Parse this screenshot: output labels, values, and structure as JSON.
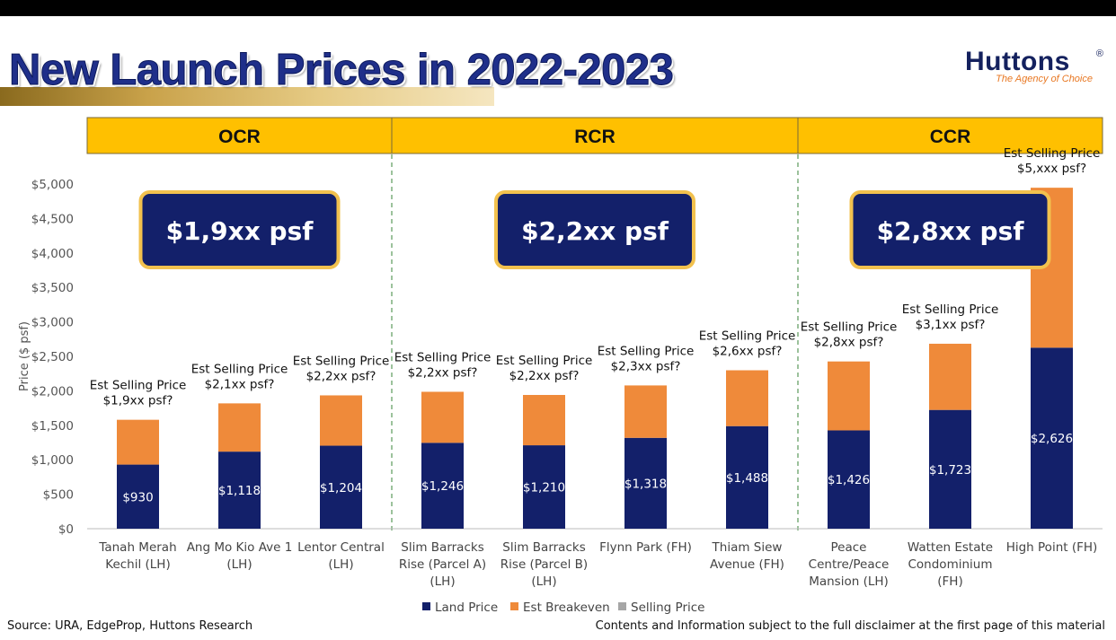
{
  "header": {
    "title": "New Launch Prices in 2022-2023",
    "brand_name": "Huttons",
    "brand_reg": "®",
    "brand_tagline": "The Agency of Choice"
  },
  "footer": {
    "source": "Source: URA, EdgeProp, Huttons Research",
    "disclaimer": "Contents and Information subject to the full disclaimer at the first page of this material"
  },
  "colors": {
    "land": "#13206a",
    "breakeven": "#ef8a3a",
    "selling": "#a6a6a6",
    "segment_fill": "#ffc000",
    "badge_fill": "#13206a",
    "badge_border": "#f2c14e"
  },
  "chart_data": {
    "type": "bar",
    "stacked": true,
    "ylabel": "Price ($ psf)",
    "ylim": [
      0,
      5000
    ],
    "yticks": [
      0,
      500,
      1000,
      1500,
      2000,
      2500,
      3000,
      3500,
      4000,
      4500,
      5000
    ],
    "ytick_labels": [
      "$0",
      "$500",
      "$1,000",
      "$1,500",
      "$2,000",
      "$2,500",
      "$3,000",
      "$3,500",
      "$4,000",
      "$4,500",
      "$5,000"
    ],
    "grid": false,
    "legend_position": "bottom",
    "segments": [
      {
        "name": "OCR",
        "start": 0,
        "end": 2,
        "avg_label": "$1,9xx psf"
      },
      {
        "name": "RCR",
        "start": 3,
        "end": 6,
        "avg_label": "$2,2xx psf"
      },
      {
        "name": "CCR",
        "start": 7,
        "end": 9,
        "avg_label": "$2,8xx psf"
      }
    ],
    "categories": [
      [
        "Tanah Merah",
        "Kechil (LH)"
      ],
      [
        "Ang Mo Kio Ave 1",
        "(LH)"
      ],
      [
        "Lentor Central",
        "(LH)"
      ],
      [
        "Slim Barracks",
        "Rise (Parcel A)",
        "(LH)"
      ],
      [
        "Slim Barracks",
        "Rise (Parcel B)",
        "(LH)"
      ],
      [
        "Flynn Park (FH)"
      ],
      [
        "Thiam Siew",
        "Avenue (FH)"
      ],
      [
        "Peace",
        "Centre/Peace",
        "Mansion (LH)"
      ],
      [
        "Watten Estate",
        "Condominium",
        "(FH)"
      ],
      [
        "High Point (FH)"
      ]
    ],
    "series": [
      {
        "name": "Land Price",
        "values": [
          930,
          1118,
          1204,
          1246,
          1210,
          1318,
          1488,
          1426,
          1723,
          2626
        ],
        "labels": [
          "$930",
          "$1,118",
          "$1,204",
          "$1,246",
          "$1,210",
          "$1,318",
          "$1,488",
          "$1,426",
          "$1,723",
          "$2,626"
        ]
      },
      {
        "name": "Est Breakeven",
        "values": [
          650,
          700,
          730,
          740,
          730,
          760,
          810,
          1000,
          960,
          2320
        ]
      },
      {
        "name": "Selling Price",
        "values": [
          0,
          0,
          0,
          0,
          0,
          0,
          0,
          0,
          0,
          0
        ]
      }
    ],
    "annotations": [
      [
        "Est Selling Price",
        "$1,9xx psf?"
      ],
      [
        "Est Selling Price",
        "$2,1xx psf?"
      ],
      [
        "Est Selling Price",
        "$2,2xx psf?"
      ],
      [
        "Est Selling Price",
        "$2,2xx psf?"
      ],
      [
        "Est Selling Price",
        "$2,2xx psf?"
      ],
      [
        "Est Selling Price",
        "$2,3xx psf?"
      ],
      [
        "Est Selling Price",
        "$2,6xx psf?"
      ],
      [
        "Est Selling Price",
        "$2,8xx psf?"
      ],
      [
        "Est Selling Price",
        "$3,1xx psf?"
      ],
      [
        "Est Selling Price",
        "$5,xxx psf?"
      ]
    ]
  }
}
